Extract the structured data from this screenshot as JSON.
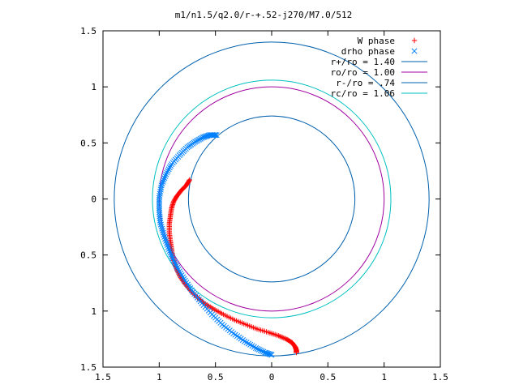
{
  "chart_data": {
    "type": "scatter",
    "title": "m1/n1.5/q2.0/r-+.52-j270/M7.0/512",
    "xlim": [
      -1.5,
      1.5
    ],
    "ylim": [
      -1.5,
      1.5
    ],
    "x_ticks": [
      -1.5,
      -1,
      -0.5,
      0,
      0.5,
      1,
      1.5
    ],
    "y_ticks": [
      -1.5,
      -1,
      -0.5,
      0,
      0.5,
      1,
      1.5
    ],
    "x_tick_labels": [
      "1.5",
      "1",
      "0.5",
      "0",
      "0.5",
      "1",
      "1.5"
    ],
    "y_tick_labels": [
      "1.5",
      "1",
      "0.5",
      "0",
      "0.5",
      "1",
      "1.5"
    ],
    "grid": false,
    "legend_position": "top-right",
    "series": [
      {
        "name": "W phase",
        "kind": "points",
        "marker": "+",
        "color": "#ff0000",
        "points": [
          [
            -0.73,
            0.17
          ],
          [
            -0.76,
            0.12
          ],
          [
            -0.8,
            0.08
          ],
          [
            -0.84,
            0.03
          ],
          [
            -0.87,
            -0.02
          ],
          [
            -0.89,
            -0.08
          ],
          [
            -0.9,
            -0.15
          ],
          [
            -0.91,
            -0.22
          ],
          [
            -0.91,
            -0.3
          ],
          [
            -0.9,
            -0.38
          ],
          [
            -0.89,
            -0.45
          ],
          [
            -0.88,
            -0.52
          ],
          [
            -0.86,
            -0.58
          ],
          [
            -0.84,
            -0.64
          ],
          [
            -0.81,
            -0.7
          ],
          [
            -0.77,
            -0.76
          ],
          [
            -0.72,
            -0.82
          ],
          [
            -0.66,
            -0.88
          ],
          [
            -0.6,
            -0.93
          ],
          [
            -0.52,
            -0.98
          ],
          [
            -0.43,
            -1.03
          ],
          [
            -0.33,
            -1.08
          ],
          [
            -0.23,
            -1.12
          ],
          [
            -0.13,
            -1.16
          ],
          [
            -0.03,
            -1.19
          ],
          [
            0.06,
            -1.22
          ],
          [
            0.13,
            -1.25
          ],
          [
            0.18,
            -1.28
          ],
          [
            0.21,
            -1.32
          ],
          [
            0.22,
            -1.35
          ],
          [
            0.22,
            -1.37
          ]
        ]
      },
      {
        "name": "drho phase",
        "kind": "points",
        "marker": "x",
        "color": "#0080ff",
        "points": [
          [
            -0.49,
            0.57
          ],
          [
            -0.55,
            0.57
          ],
          [
            -0.61,
            0.55
          ],
          [
            -0.68,
            0.51
          ],
          [
            -0.75,
            0.46
          ],
          [
            -0.82,
            0.39
          ],
          [
            -0.89,
            0.31
          ],
          [
            -0.94,
            0.22
          ],
          [
            -0.98,
            0.12
          ],
          [
            -1.0,
            0.01
          ],
          [
            -1.0,
            -0.1
          ],
          [
            -0.99,
            -0.21
          ],
          [
            -0.96,
            -0.32
          ],
          [
            -0.92,
            -0.43
          ],
          [
            -0.88,
            -0.53
          ],
          [
            -0.83,
            -0.63
          ],
          [
            -0.77,
            -0.73
          ],
          [
            -0.7,
            -0.83
          ],
          [
            -0.62,
            -0.93
          ],
          [
            -0.53,
            -1.03
          ],
          [
            -0.44,
            -1.12
          ],
          [
            -0.34,
            -1.2
          ],
          [
            -0.24,
            -1.27
          ],
          [
            -0.14,
            -1.33
          ],
          [
            -0.06,
            -1.37
          ],
          [
            0.0,
            -1.39
          ]
        ]
      },
      {
        "name": "r+/ro = 1.40",
        "kind": "circle",
        "radius": 1.4,
        "color": "#0060ad"
      },
      {
        "name": "ro/ro = 1.00",
        "kind": "circle",
        "radius": 1.0,
        "color": "#a000a0"
      },
      {
        "name": "r-/ro = .74",
        "kind": "circle",
        "radius": 0.74,
        "color": "#0060ad"
      },
      {
        "name": "rc/ro = 1.06",
        "kind": "circle",
        "radius": 1.06,
        "color": "#00c0c0"
      }
    ]
  }
}
